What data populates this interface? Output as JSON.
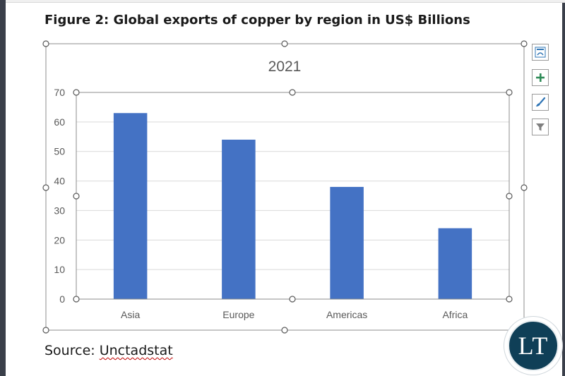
{
  "figure": {
    "title": "Figure 2: Global exports of copper by region in US$ Billions",
    "source_prefix": "Source: ",
    "source_name": "Unctadstat"
  },
  "logo": {
    "text": "LT"
  },
  "chart_tools": [
    {
      "name": "chart-layout-icon",
      "label": "Chart Elements Layout"
    },
    {
      "name": "chart-elements-plus-icon",
      "label": "Chart Elements"
    },
    {
      "name": "chart-styles-brush-icon",
      "label": "Chart Styles"
    },
    {
      "name": "chart-filters-funnel-icon",
      "label": "Chart Filters"
    }
  ],
  "colors": {
    "bar": "#4472c4",
    "grid": "#d9d9d9",
    "axis_text": "#595959",
    "title_text": "#595959",
    "accent_green": "#2e8b57",
    "accent_blue": "#2e74b5"
  },
  "chart_data": {
    "type": "bar",
    "title": "2021",
    "categories": [
      "Asia",
      "Europe",
      "Americas",
      "Africa"
    ],
    "values": [
      63,
      54,
      38,
      24
    ],
    "xlabel": "",
    "ylabel": "",
    "ylim": [
      0,
      70
    ],
    "yticks": [
      "0",
      "10",
      "20",
      "30",
      "40",
      "50",
      "60",
      "70"
    ],
    "grid": true,
    "legend": "none"
  }
}
